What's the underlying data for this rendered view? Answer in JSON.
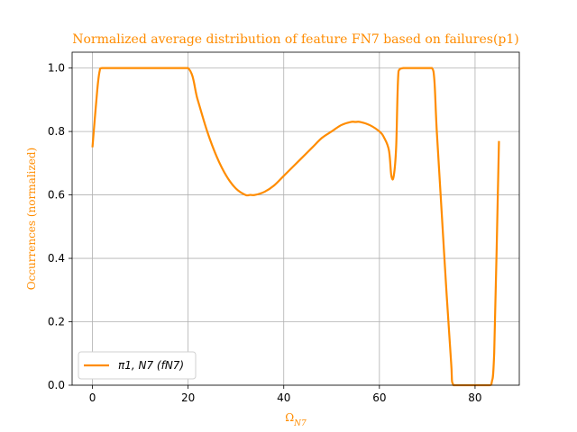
{
  "colors": {
    "series": "#ff8c00",
    "title": "#ff8c00",
    "grid": "#b0b0b0",
    "axes": "#000000"
  },
  "chart_data": {
    "type": "line",
    "title": "Normalized average distribution of feature FN7 based on failures(p1)",
    "xlabel": "Ω_N7",
    "ylabel": "Occurrences (normalized)",
    "xlim": [
      -4.25,
      89.25
    ],
    "ylim": [
      0,
      1.05
    ],
    "grid": true,
    "legend_position": "lower-left",
    "x_ticks": [
      0,
      20,
      40,
      60,
      80
    ],
    "x_tick_labels": [
      "0",
      "20",
      "40",
      "60",
      "80"
    ],
    "y_ticks": [
      0.0,
      0.2,
      0.4,
      0.6,
      0.8,
      1.0
    ],
    "y_tick_labels": [
      "0.0",
      "0.2",
      "0.4",
      "0.6",
      "0.8",
      "1.0"
    ],
    "series": [
      {
        "name": "π1, N7 (fN7)",
        "x": [
          0,
          1,
          1.5,
          2,
          5,
          10,
          15,
          20,
          22,
          24,
          26,
          28,
          30,
          32,
          33,
          34,
          36,
          38,
          40,
          42,
          44,
          46,
          48,
          50,
          52,
          54,
          55,
          56,
          58,
          60,
          61,
          62,
          62.5,
          63,
          63.5,
          64,
          65,
          67,
          70,
          71,
          71.5,
          72,
          73,
          74,
          75,
          75.5,
          78,
          80,
          83,
          83.5,
          84,
          85
        ],
        "y": [
          0.75,
          0.93,
          0.99,
          1.0,
          1.0,
          1.0,
          1.0,
          1.0,
          0.9,
          0.8,
          0.72,
          0.66,
          0.62,
          0.6,
          0.6,
          0.6,
          0.61,
          0.63,
          0.66,
          0.69,
          0.72,
          0.75,
          0.78,
          0.8,
          0.82,
          0.83,
          0.83,
          0.83,
          0.82,
          0.8,
          0.78,
          0.74,
          0.66,
          0.66,
          0.75,
          0.99,
          1.0,
          1.0,
          1.0,
          1.0,
          0.96,
          0.8,
          0.55,
          0.3,
          0.07,
          0.0,
          0.0,
          0.0,
          0.0,
          0.01,
          0.1,
          0.77
        ]
      }
    ]
  }
}
